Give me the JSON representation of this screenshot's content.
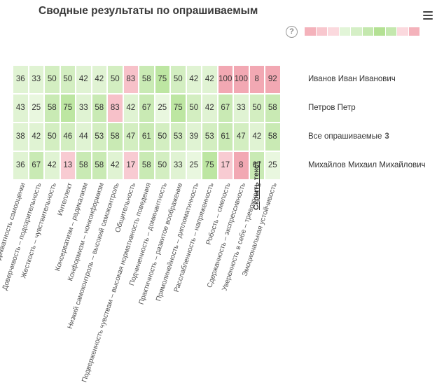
{
  "title": "Сводные результаты по опрашиваемым",
  "help_icon": "?",
  "legend_colors": [
    "#f4b2bb",
    "#f8c7ce",
    "#fbd9de",
    "#e2f5d8",
    "#d5efc6",
    "#c4e8ae",
    "#b4e194",
    "#c4e8ae",
    "#fbd9de",
    "#f4b2bb"
  ],
  "rows": [
    {
      "label": "Иванов Иван Иванович",
      "count": "",
      "values": [
        36,
        33,
        50,
        50,
        42,
        42,
        50,
        83,
        58,
        75,
        50,
        42,
        42,
        100,
        100,
        8,
        92
      ]
    },
    {
      "label": "Петров Петр",
      "count": "",
      "values": [
        43,
        25,
        58,
        75,
        33,
        58,
        83,
        42,
        67,
        25,
        75,
        50,
        42,
        67,
        33,
        50,
        58
      ]
    },
    {
      "label": "Все опрашиваемые",
      "count": "3",
      "values": [
        38,
        42,
        50,
        46,
        44,
        53,
        58,
        47,
        61,
        50,
        53,
        39,
        53,
        61,
        47,
        42,
        58
      ]
    },
    {
      "label": "Михайлов Михаил Михайлович",
      "count": "",
      "values": [
        36,
        67,
        42,
        13,
        58,
        58,
        42,
        17,
        58,
        50,
        33,
        25,
        75,
        17,
        8,
        67,
        25
      ]
    }
  ],
  "columns": [
    "Адекватность самооценки",
    "Доверчивость – подозрительность",
    "Жесткость – чувствительность",
    "Интеллект",
    "Консерватизм – радикализм",
    "Конформизм – нонконформизм",
    "Низкий самоконтроль – высокий самоконтроль",
    "Общительность",
    "Подверженность чувствам – высокая нормативность поведения",
    "Подчиненность – доминантность",
    "Практичность – развитое воображение",
    "Прямолинейность – дипломатичность",
    "Расслабленность – напряженность",
    "Робость – смелость",
    "Сдержанность – экспрессивность",
    "Уверенность в себе – тревожность",
    "Эмоциональная устойчивость"
  ],
  "hide_text_link": "Скрыть текст"
}
